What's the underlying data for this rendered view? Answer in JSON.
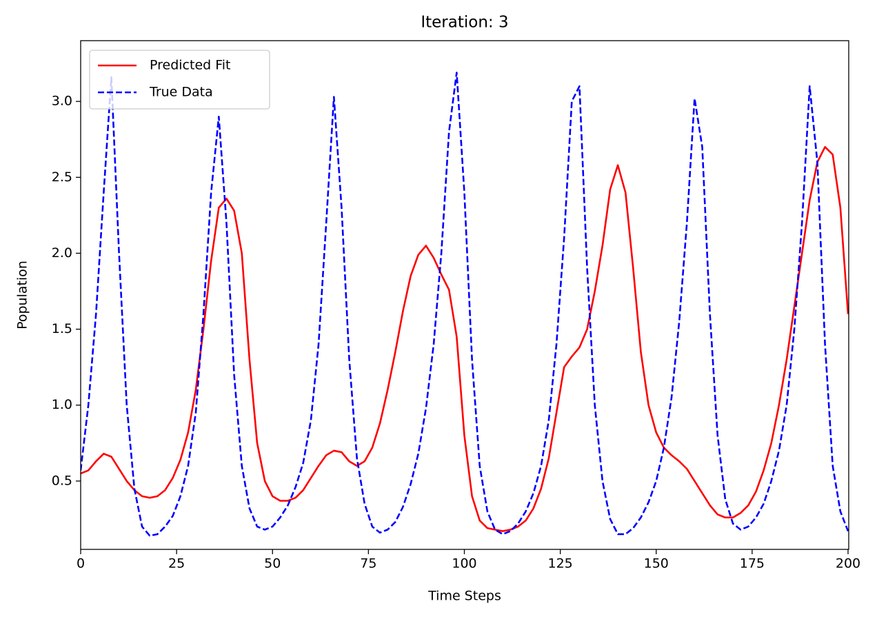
{
  "chart_data": {
    "type": "line",
    "title": "Iteration: 3",
    "x_label": "Time Steps",
    "y_label": "Population",
    "x": [
      0,
      2,
      4,
      6,
      8,
      10,
      12,
      14,
      16,
      18,
      20,
      22,
      24,
      26,
      28,
      30,
      32,
      34,
      36,
      38,
      40,
      42,
      44,
      46,
      48,
      50,
      52,
      54,
      56,
      58,
      60,
      62,
      64,
      66,
      68,
      70,
      72,
      74,
      76,
      78,
      80,
      82,
      84,
      86,
      88,
      90,
      92,
      94,
      96,
      98,
      100,
      102,
      104,
      106,
      108,
      110,
      112,
      114,
      116,
      118,
      120,
      122,
      124,
      126,
      128,
      130,
      132,
      134,
      136,
      138,
      140,
      142,
      144,
      146,
      148,
      150,
      152,
      154,
      156,
      158,
      160,
      162,
      164,
      166,
      168,
      170,
      172,
      174,
      176,
      178,
      180,
      182,
      184,
      186,
      188,
      190,
      192,
      194,
      196,
      198,
      200
    ],
    "series": [
      {
        "name": "Predicted Fit",
        "color": "#ff0000",
        "dash": false,
        "values": [
          0.55,
          0.57,
          0.63,
          0.68,
          0.66,
          0.58,
          0.5,
          0.44,
          0.4,
          0.39,
          0.4,
          0.44,
          0.52,
          0.64,
          0.82,
          1.1,
          1.5,
          1.95,
          2.3,
          2.36,
          2.28,
          2.0,
          1.3,
          0.75,
          0.5,
          0.4,
          0.37,
          0.37,
          0.39,
          0.44,
          0.52,
          0.6,
          0.67,
          0.7,
          0.69,
          0.63,
          0.6,
          0.63,
          0.72,
          0.88,
          1.1,
          1.35,
          1.62,
          1.85,
          1.99,
          2.05,
          1.97,
          1.86,
          1.76,
          1.45,
          0.8,
          0.4,
          0.24,
          0.19,
          0.18,
          0.17,
          0.18,
          0.2,
          0.24,
          0.32,
          0.45,
          0.65,
          0.95,
          1.25,
          1.32,
          1.38,
          1.5,
          1.75,
          2.05,
          2.42,
          2.58,
          2.4,
          1.9,
          1.35,
          1.0,
          0.82,
          0.72,
          0.67,
          0.63,
          0.58,
          0.5,
          0.42,
          0.34,
          0.28,
          0.26,
          0.26,
          0.29,
          0.34,
          0.43,
          0.57,
          0.75,
          1.0,
          1.3,
          1.65,
          2.0,
          2.35,
          2.6,
          2.7,
          2.65,
          2.3,
          1.6
        ]
      },
      {
        "name": "True Data",
        "color": "#0000ff",
        "dash": true,
        "values": [
          0.57,
          1.0,
          1.6,
          2.4,
          3.16,
          2.0,
          1.0,
          0.45,
          0.2,
          0.14,
          0.15,
          0.2,
          0.27,
          0.4,
          0.6,
          0.95,
          1.6,
          2.4,
          2.9,
          2.2,
          1.2,
          0.6,
          0.32,
          0.2,
          0.18,
          0.2,
          0.26,
          0.34,
          0.46,
          0.62,
          0.9,
          1.4,
          2.2,
          3.03,
          2.3,
          1.3,
          0.65,
          0.35,
          0.2,
          0.16,
          0.18,
          0.23,
          0.33,
          0.48,
          0.68,
          0.98,
          1.4,
          2.0,
          2.8,
          3.19,
          2.4,
          1.3,
          0.6,
          0.3,
          0.18,
          0.15,
          0.17,
          0.22,
          0.3,
          0.42,
          0.6,
          0.9,
          1.4,
          2.1,
          3.0,
          3.1,
          1.9,
          1.0,
          0.5,
          0.25,
          0.15,
          0.15,
          0.19,
          0.26,
          0.36,
          0.5,
          0.72,
          1.05,
          1.55,
          2.2,
          3.02,
          2.7,
          1.6,
          0.8,
          0.38,
          0.22,
          0.18,
          0.2,
          0.26,
          0.35,
          0.5,
          0.7,
          1.0,
          1.5,
          2.2,
          3.1,
          2.6,
          1.4,
          0.6,
          0.3,
          0.17
        ]
      }
    ],
    "xlim": [
      0,
      200
    ],
    "ylim": [
      0.05,
      3.4
    ],
    "xticks": [
      0,
      25,
      50,
      75,
      100,
      125,
      150,
      175,
      200
    ],
    "yticks": [
      0.5,
      {
        "value": 1,
        "label": "1.0"
      },
      1.5,
      {
        "value": 2,
        "label": "2.0"
      },
      2.5,
      {
        "value": 3,
        "label": "3.0"
      }
    ],
    "grid": false,
    "legend": "upper left"
  }
}
